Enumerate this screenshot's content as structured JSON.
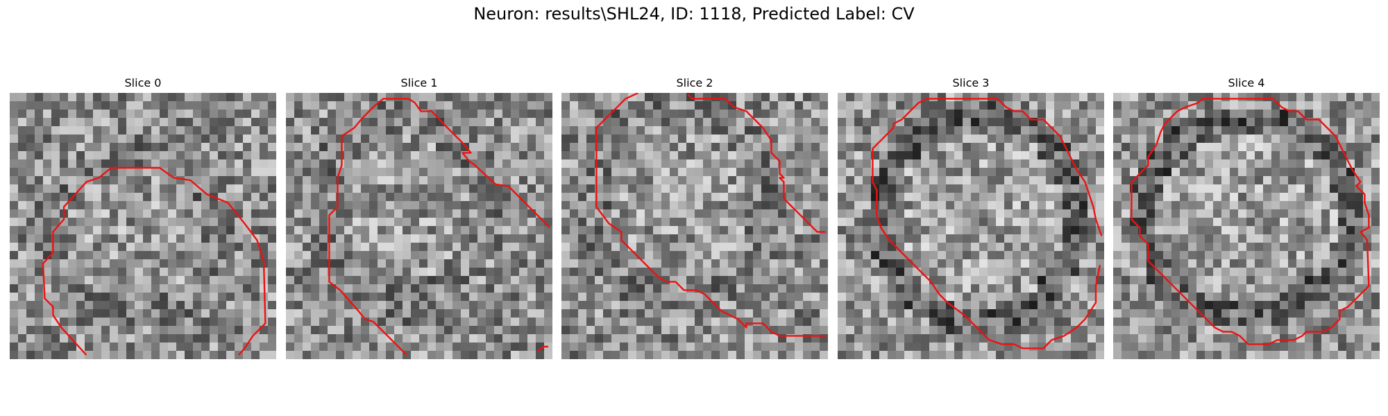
{
  "figure": {
    "title": "Neuron: results\\SHL24, ID: 1118, Predicted Label: CV"
  },
  "colors": {
    "contour": "#ee1111",
    "background": "#ffffff"
  },
  "panels": [
    {
      "title": "Slice 0"
    },
    {
      "title": "Slice 1"
    },
    {
      "title": "Slice 2"
    },
    {
      "title": "Slice 3"
    },
    {
      "title": "Slice 4"
    }
  ]
}
